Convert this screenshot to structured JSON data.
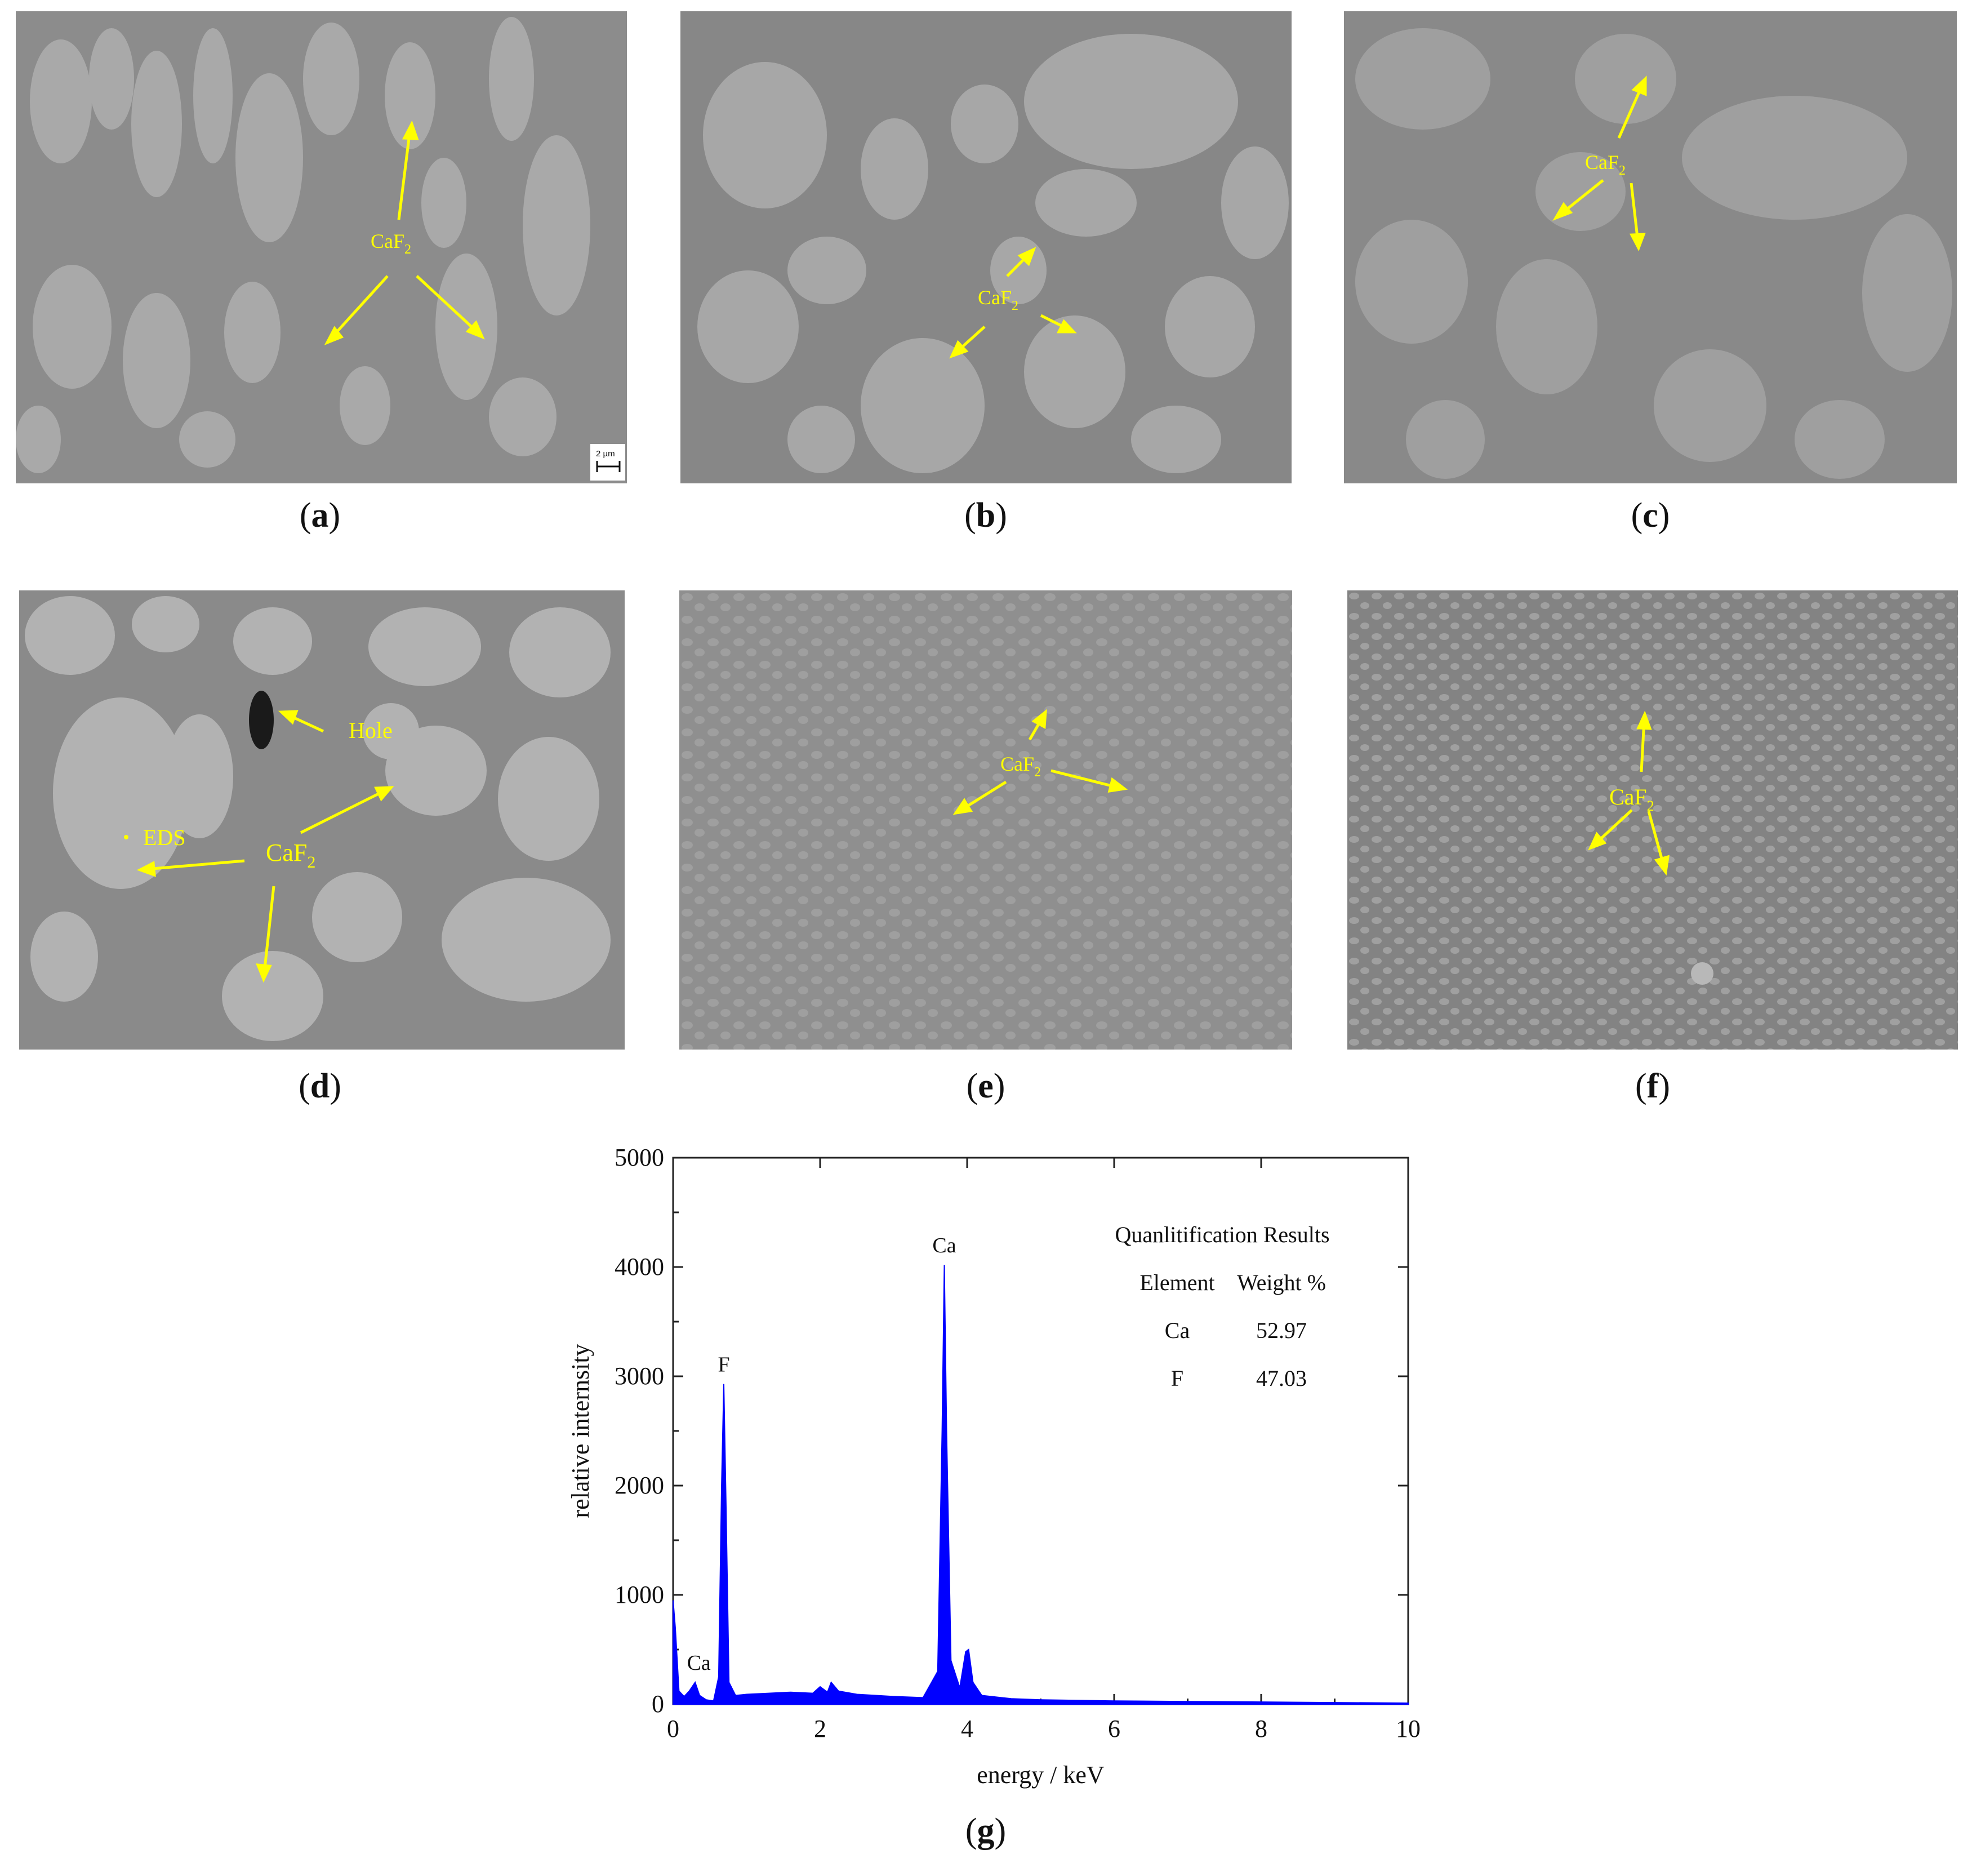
{
  "panels": [
    {
      "id": "a",
      "label": "a",
      "annotations": [
        "CaF",
        "2"
      ],
      "scale_bar": "2 µm"
    },
    {
      "id": "b",
      "label": "b",
      "annotations": [
        "CaF",
        "2"
      ]
    },
    {
      "id": "c",
      "label": "c",
      "annotations": [
        "CaF",
        "2"
      ]
    },
    {
      "id": "d",
      "label": "d",
      "annotations": [
        "CaF",
        "2"
      ],
      "hole_label": "Hole",
      "eds_label": "EDS"
    },
    {
      "id": "e",
      "label": "e",
      "annotations": [
        "CaF",
        "2"
      ]
    },
    {
      "id": "f",
      "label": "f",
      "annotations": [
        "CaF",
        "2"
      ]
    }
  ],
  "panel_g": {
    "label": "g"
  },
  "chart_data": {
    "type": "line",
    "xlabel": "energy / keV",
    "ylabel": "relative internsity",
    "xlim": [
      0,
      10
    ],
    "ylim": [
      0,
      5000
    ],
    "xticks": [
      "0",
      "2",
      "4",
      "6",
      "8",
      "10"
    ],
    "yticks": [
      "0",
      "1000",
      "2000",
      "3000",
      "4000",
      "5000"
    ],
    "color": "#0000ff",
    "series": [
      {
        "x": [
          0,
          0.03,
          0.08,
          0.15,
          0.22,
          0.3,
          0.36,
          0.45,
          0.55,
          0.62,
          0.66,
          0.69,
          0.72,
          0.76,
          0.85,
          1.0,
          1.3,
          1.6,
          1.9,
          2.0,
          2.1,
          2.15,
          2.25,
          2.5,
          3.0,
          3.4,
          3.6,
          3.66,
          3.69,
          3.72,
          3.78,
          3.9,
          3.98,
          4.02,
          4.08,
          4.2,
          4.6,
          5.0,
          6.0,
          7.0,
          8.0,
          9.0,
          10.0
        ],
        "y": [
          950,
          700,
          120,
          70,
          120,
          200,
          80,
          40,
          30,
          250,
          2000,
          2930,
          1800,
          200,
          80,
          90,
          100,
          110,
          100,
          160,
          110,
          200,
          120,
          90,
          70,
          60,
          300,
          2500,
          4020,
          2500,
          400,
          150,
          480,
          500,
          200,
          80,
          50,
          40,
          30,
          25,
          20,
          15,
          10
        ]
      }
    ],
    "peak_labels": [
      {
        "text": "Ca",
        "x": 0.35,
        "y": 200
      },
      {
        "text": "F",
        "x": 0.69,
        "y": 2930
      },
      {
        "text": "Ca",
        "x": 3.69,
        "y": 4020
      }
    ],
    "table": {
      "title": "Quanlitification  Results",
      "headers": [
        "Element",
        "Weight %"
      ],
      "rows": [
        [
          "Ca",
          "52.97"
        ],
        [
          "F",
          "47.03"
        ]
      ]
    }
  }
}
